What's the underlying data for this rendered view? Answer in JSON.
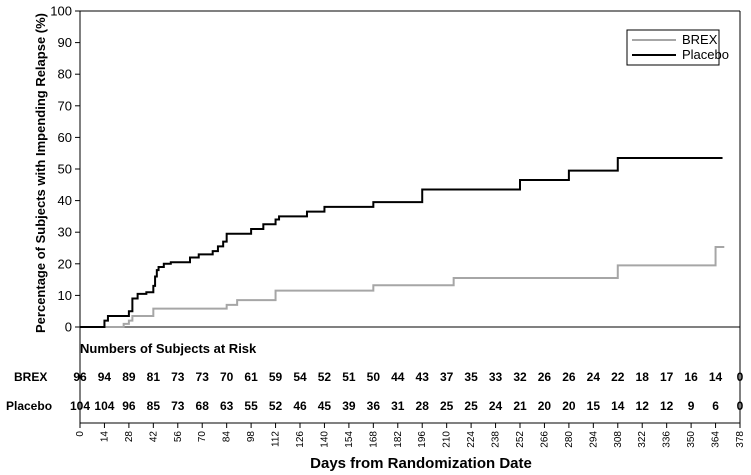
{
  "chart_data": {
    "type": "line",
    "step": true,
    "xlabel": "Days from Randomization Date",
    "ylabel": "Percentage of Subjects with Impending Relapse (%)",
    "xlim": [
      0,
      378
    ],
    "ylim": [
      0,
      100
    ],
    "xticks": [
      0,
      14,
      28,
      42,
      56,
      70,
      84,
      98,
      112,
      126,
      140,
      154,
      168,
      182,
      196,
      210,
      224,
      238,
      252,
      266,
      280,
      294,
      308,
      322,
      336,
      350,
      364,
      378
    ],
    "yticks": [
      0,
      10,
      20,
      30,
      40,
      50,
      60,
      70,
      80,
      90,
      100
    ],
    "legend_position": "top-right",
    "series": [
      {
        "name": "BREX",
        "color": "#a6a6a6",
        "points": [
          [
            0,
            0
          ],
          [
            25,
            0
          ],
          [
            25,
            1
          ],
          [
            28,
            1
          ],
          [
            28,
            2
          ],
          [
            30,
            2
          ],
          [
            30,
            3.5
          ],
          [
            42,
            3.5
          ],
          [
            42,
            5.8
          ],
          [
            84,
            5.8
          ],
          [
            84,
            7
          ],
          [
            90,
            7
          ],
          [
            90,
            8.5
          ],
          [
            112,
            8.5
          ],
          [
            112,
            11.5
          ],
          [
            168,
            11.5
          ],
          [
            168,
            13.2
          ],
          [
            214,
            13.2
          ],
          [
            214,
            15.5
          ],
          [
            308,
            15.5
          ],
          [
            308,
            19.5
          ],
          [
            364,
            19.5
          ],
          [
            364,
            25.3
          ],
          [
            369,
            25.3
          ]
        ]
      },
      {
        "name": "Placebo",
        "color": "#000000",
        "points": [
          [
            0,
            0
          ],
          [
            14,
            0
          ],
          [
            14,
            2
          ],
          [
            16,
            2
          ],
          [
            16,
            3.5
          ],
          [
            28,
            3.5
          ],
          [
            28,
            5
          ],
          [
            30,
            5
          ],
          [
            30,
            9
          ],
          [
            33,
            9
          ],
          [
            33,
            10.5
          ],
          [
            38,
            10.5
          ],
          [
            38,
            11
          ],
          [
            42,
            11
          ],
          [
            42,
            13
          ],
          [
            43,
            13
          ],
          [
            43,
            16
          ],
          [
            44,
            16
          ],
          [
            44,
            18
          ],
          [
            45,
            18
          ],
          [
            45,
            19
          ],
          [
            48,
            19
          ],
          [
            48,
            20
          ],
          [
            52,
            20
          ],
          [
            52,
            20.5
          ],
          [
            63,
            20.5
          ],
          [
            63,
            22
          ],
          [
            68,
            22
          ],
          [
            68,
            23
          ],
          [
            76,
            23
          ],
          [
            76,
            24
          ],
          [
            79,
            24
          ],
          [
            79,
            25.5
          ],
          [
            82,
            25.5
          ],
          [
            82,
            27
          ],
          [
            84,
            27
          ],
          [
            84,
            29.5
          ],
          [
            98,
            29.5
          ],
          [
            98,
            31
          ],
          [
            105,
            31
          ],
          [
            105,
            32.5
          ],
          [
            112,
            32.5
          ],
          [
            112,
            34
          ],
          [
            114,
            34
          ],
          [
            114,
            35
          ],
          [
            130,
            35
          ],
          [
            130,
            36.5
          ],
          [
            140,
            36.5
          ],
          [
            140,
            38
          ],
          [
            168,
            38
          ],
          [
            168,
            39.5
          ],
          [
            196,
            39.5
          ],
          [
            196,
            43.5
          ],
          [
            252,
            43.5
          ],
          [
            252,
            46.5
          ],
          [
            280,
            46.5
          ],
          [
            280,
            49.5
          ],
          [
            308,
            49.5
          ],
          [
            308,
            53.5
          ],
          [
            368,
            53.5
          ]
        ]
      }
    ],
    "risk_table": {
      "title": "Numbers of Subjects at Risk",
      "rows": [
        {
          "label": "BREX",
          "values": [
            96,
            94,
            89,
            81,
            73,
            73,
            70,
            61,
            59,
            54,
            52,
            51,
            50,
            44,
            43,
            37,
            35,
            33,
            32,
            26,
            26,
            24,
            22,
            18,
            17,
            16,
            14,
            0
          ]
        },
        {
          "label": "Placebo",
          "values": [
            104,
            104,
            96,
            85,
            73,
            68,
            63,
            55,
            52,
            46,
            45,
            39,
            36,
            31,
            28,
            25,
            25,
            24,
            21,
            20,
            20,
            15,
            14,
            12,
            12,
            9,
            6,
            0
          ]
        }
      ]
    }
  }
}
